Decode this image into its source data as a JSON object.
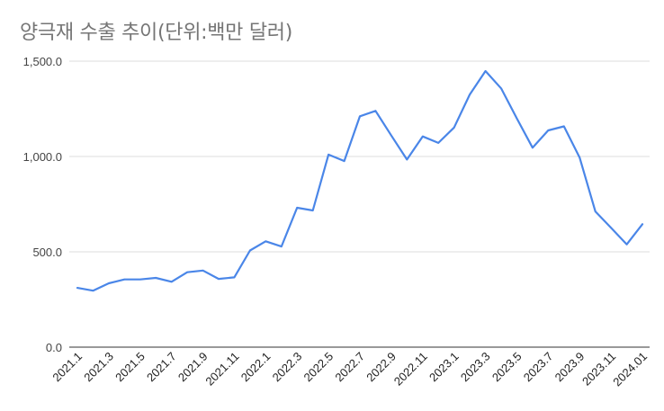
{
  "chart_data": {
    "type": "line",
    "title": "양극재 수출 추이(단위:백만 달러)",
    "xlabel": "",
    "ylabel": "",
    "ylim": [
      0,
      1500
    ],
    "yticks": [
      "0.0",
      "500.0",
      "1,000.0",
      "1,500.0"
    ],
    "ytick_values": [
      0,
      500,
      1000,
      1500
    ],
    "grid": true,
    "legend": "none",
    "line_color": "#4a86e8",
    "x": [
      "2021.1",
      "2021.2",
      "2021.3",
      "2021.4",
      "2021.5",
      "2021.6",
      "2021.7",
      "2021.8",
      "2021.9",
      "2021.10",
      "2021.11",
      "2021.12",
      "2022.1",
      "2022.2",
      "2022.3",
      "2022.4",
      "2022.5",
      "2022.6",
      "2022.7",
      "2022.8",
      "2022.9",
      "2022.10",
      "2022.11",
      "2022.12",
      "2023.1",
      "2023.2",
      "2023.3",
      "2023.4",
      "2023.5",
      "2023.6",
      "2023.7",
      "2023.8",
      "2023.9",
      "2023.10",
      "2023.11",
      "2023.12",
      "2024.01"
    ],
    "xtick_labels": [
      "2021.1",
      "2021.3",
      "2021.5",
      "2021.7",
      "2021.9",
      "2021.11",
      "2022.1",
      "2022.3",
      "2022.5",
      "2022.7",
      "2022.9",
      "2022.11",
      "2023.1",
      "2023.3",
      "2023.5",
      "2023.7",
      "2023.9",
      "2023.11",
      "2024.01"
    ],
    "xtick_indices": [
      0,
      2,
      4,
      6,
      8,
      10,
      12,
      14,
      16,
      18,
      20,
      22,
      24,
      26,
      28,
      30,
      32,
      34,
      36
    ],
    "series": [
      {
        "name": "양극재 수출",
        "values": [
          311,
          296,
          335,
          355,
          355,
          363,
          343,
          393,
          402,
          358,
          366,
          507,
          555,
          528,
          731,
          717,
          1010,
          976,
          1211,
          1239,
          1110,
          984,
          1105,
          1071,
          1152,
          1325,
          1448,
          1357,
          1200,
          1046,
          1137,
          1158,
          995,
          712,
          626,
          539,
          645
        ]
      }
    ]
  }
}
